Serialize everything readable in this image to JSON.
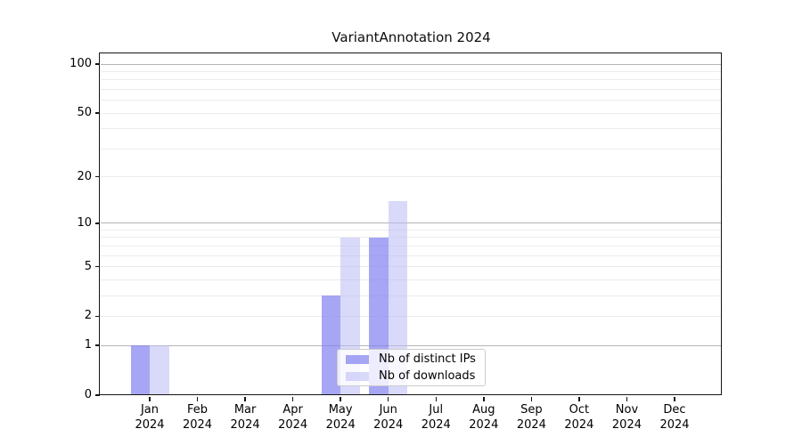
{
  "figure": {
    "background": "#ffffff"
  },
  "chart_data": {
    "type": "bar",
    "title": "VariantAnnotation 2024",
    "xlabel": "",
    "ylabel": "",
    "categories": [
      "Jan 2024",
      "Feb 2024",
      "Mar 2024",
      "Apr 2024",
      "May 2024",
      "Jun 2024",
      "Jul 2024",
      "Aug 2024",
      "Sep 2024",
      "Oct 2024",
      "Nov 2024",
      "Dec 2024"
    ],
    "series": [
      {
        "name": "Nb of distinct IPs",
        "color": "rgba(132,132,240,0.72)",
        "values": [
          1,
          0,
          0,
          0,
          3,
          8,
          0,
          0,
          0,
          0,
          0,
          0
        ]
      },
      {
        "name": "Nb of downloads",
        "color": "rgba(185,185,246,0.55)",
        "values": [
          1,
          0,
          0,
          0,
          8,
          14,
          0,
          0,
          0,
          0,
          0,
          0
        ]
      }
    ],
    "yscale": "log1p",
    "ylim": [
      0,
      115
    ],
    "yticks": [
      0,
      1,
      2,
      5,
      10,
      20,
      50,
      100
    ],
    "major_gridlines": [
      1,
      10,
      100
    ],
    "minor_gridlines": [
      2,
      3,
      4,
      5,
      6,
      7,
      8,
      9,
      20,
      30,
      40,
      50,
      60,
      70,
      80,
      90
    ],
    "grid": true,
    "legend_position": "lower center-right, inside plot",
    "colors": {
      "major_grid": "#b5b5b5",
      "minor_grid": "#ebebeb",
      "spine": "#151515",
      "text": "#000000"
    }
  }
}
